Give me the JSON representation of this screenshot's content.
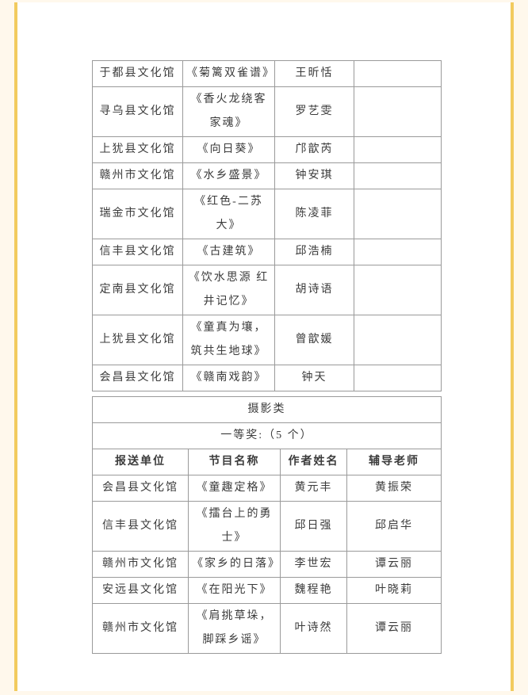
{
  "colors": {
    "accent_line": "#f2cb5e",
    "page_margin_bg": "#fff8ec",
    "page_bg": "#ffffff",
    "table_border": "#9a9a9a",
    "text": "#3b3b3b"
  },
  "table1": {
    "rows": [
      {
        "unit": "于都县文化馆",
        "title": "《菊篱双雀谱》",
        "author": "王昕恬",
        "teacher": ""
      },
      {
        "unit": "寻乌县文化馆",
        "title": "《香火龙绕客家魂》",
        "author": "罗艺雯",
        "teacher": ""
      },
      {
        "unit": "上犹县文化馆",
        "title": "《向日葵》",
        "author": "邝歆芮",
        "teacher": ""
      },
      {
        "unit": "赣州市文化馆",
        "title": "《水乡盛景》",
        "author": "钟安琪",
        "teacher": ""
      },
      {
        "unit": "瑞金市文化馆",
        "title": "《红色-二苏大》",
        "author": "陈凌菲",
        "teacher": ""
      },
      {
        "unit": "信丰县文化馆",
        "title": "《古建筑》",
        "author": "邱浩楠",
        "teacher": ""
      },
      {
        "unit": "定南县文化馆",
        "title": "《饮水思源 红井记忆》",
        "author": "胡诗语",
        "teacher": ""
      },
      {
        "unit": "上犹县文化馆",
        "title": "《童真为壤，筑共生地球》",
        "author": "曾歆媛",
        "teacher": ""
      },
      {
        "unit": "会昌县文化馆",
        "title": "《赣南戏韵》",
        "author": "钟天",
        "teacher": ""
      }
    ]
  },
  "table2": {
    "category": "摄影类",
    "award": "一等奖:（5 个）",
    "headers": [
      "报送单位",
      "节目名称",
      "作者姓名",
      "辅导老师"
    ],
    "rows": [
      {
        "unit": "会昌县文化馆",
        "title": "《童趣定格》",
        "author": "黄元丰",
        "teacher": "黄振荣"
      },
      {
        "unit": "信丰县文化馆",
        "title": "《擂台上的勇士》",
        "author": "邱日强",
        "teacher": "邱启华"
      },
      {
        "unit": "赣州市文化馆",
        "title": "《家乡的日落》",
        "author": "李世宏",
        "teacher": "谭云丽"
      },
      {
        "unit": "安远县文化馆",
        "title": "《在阳光下》",
        "author": "魏程艳",
        "teacher": "叶晓莉"
      },
      {
        "unit": "赣州市文化馆",
        "title": "《肩挑草垛，脚踩乡谣》",
        "author": "叶诗然",
        "teacher": "谭云丽"
      }
    ]
  }
}
